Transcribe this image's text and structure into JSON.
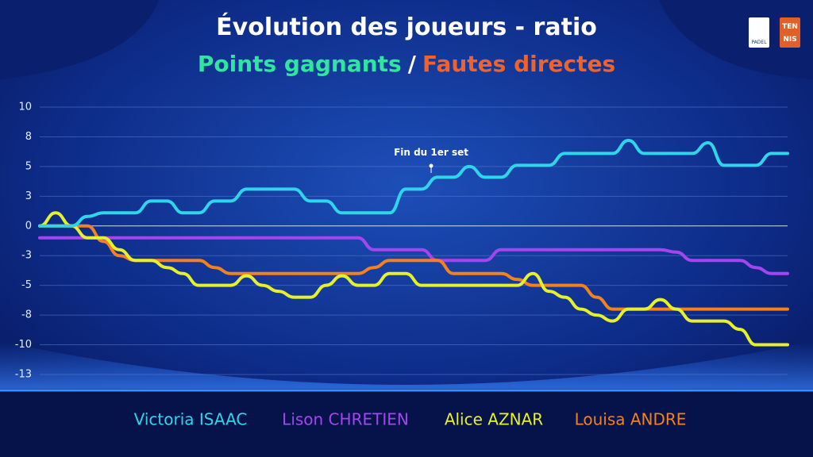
{
  "chart_data": {
    "type": "line",
    "title": "Évolution des joueurs - ratio",
    "subtitle": [
      {
        "text": "Points gagnants",
        "color": "#2fe5a0"
      },
      {
        "text": "/",
        "color": "#ffffff"
      },
      {
        "text": "Fautes directes",
        "color": "#f0622a"
      }
    ],
    "logos": [
      "PADEL",
      "TEN",
      "NIS"
    ],
    "annotation": "Fin du 1er set",
    "categories": [
      null,
      null,
      null,
      null,
      null,
      null,
      null,
      null,
      null,
      null,
      null,
      null,
      null,
      null,
      null,
      null,
      null,
      null,
      null,
      null,
      null,
      null,
      null,
      null,
      null,
      null,
      null,
      null,
      null,
      null,
      null,
      null,
      null,
      null,
      null,
      null,
      null,
      null,
      null,
      null,
      null,
      null,
      null,
      null,
      null,
      null,
      null,
      null
    ],
    "ylim": [
      -12.5,
      10
    ],
    "yticks": [
      {
        "value": 10,
        "label": "10"
      },
      {
        "value": 7.5,
        "label": "8"
      },
      {
        "value": 5,
        "label": "5"
      },
      {
        "value": 2.5,
        "label": "3"
      },
      {
        "value": 0,
        "label": "0"
      },
      {
        "value": -2.5,
        "label": "-3"
      },
      {
        "value": -5,
        "label": "-5"
      },
      {
        "value": -7.5,
        "label": "-8"
      },
      {
        "value": -10,
        "label": "-10"
      },
      {
        "value": -12.5,
        "label": "-13"
      }
    ],
    "grid": true,
    "series": [
      {
        "name": "Victoria ISAAC",
        "color": "#2fd6ea",
        "values": [
          0,
          0,
          0,
          0.8,
          1.1,
          1.1,
          1.1,
          2.1,
          2.1,
          1.1,
          1.1,
          2.1,
          2.1,
          3.1,
          3.1,
          3.1,
          3.1,
          2.1,
          2.1,
          1.1,
          1.1,
          1.1,
          1.1,
          3.1,
          3.1,
          4.1,
          4.1,
          5.0,
          4.1,
          4.1,
          5.1,
          5.1,
          5.1,
          6.1,
          6.1,
          6.1,
          6.1,
          7.2,
          6.1,
          6.1,
          6.1,
          6.1,
          7.0,
          5.1,
          5.1,
          5.1,
          6.1,
          6.1
        ]
      },
      {
        "name": "Lison CHRETIEN",
        "color": "#a545f0",
        "values": [
          -1,
          -1,
          -1,
          -1,
          -1,
          -1,
          -1,
          -1,
          -1,
          -1,
          -1,
          -1,
          -1,
          -1,
          -1,
          -1,
          -1,
          -1,
          -1,
          -1,
          -1,
          -2,
          -2,
          -2,
          -2,
          -2.9,
          -2.9,
          -2.9,
          -2.9,
          -2,
          -2,
          -2,
          -2,
          -2,
          -2,
          -2,
          -2,
          -2,
          -2,
          -2,
          -2.2,
          -2.9,
          -2.9,
          -2.9,
          -2.9,
          -3.5,
          -4,
          -4
        ]
      },
      {
        "name": "Alice AZNAR",
        "color": "#e6f02c",
        "values": [
          0,
          1.1,
          0,
          -1,
          -1,
          -2,
          -2.9,
          -2.9,
          -3.5,
          -4,
          -5,
          -5,
          -5,
          -4.2,
          -5,
          -5.5,
          -6,
          -6,
          -5,
          -4.2,
          -5,
          -5,
          -4,
          -4,
          -5,
          -5,
          -5,
          -5,
          -5,
          -5,
          -5,
          -4,
          -5.5,
          -6,
          -7,
          -7.5,
          -8,
          -7,
          -7,
          -6.2,
          -7,
          -8,
          -8,
          -8,
          -8.7,
          -10,
          -10,
          -10
        ]
      },
      {
        "name": "Louisa ANDRE",
        "color": "#f4811f",
        "values": [
          0,
          0,
          0,
          0,
          -1.3,
          -2.5,
          -2.9,
          -2.9,
          -2.9,
          -2.9,
          -2.9,
          -3.5,
          -4,
          -4,
          -4,
          -4,
          -4,
          -4,
          -4,
          -4,
          -4,
          -3.5,
          -2.9,
          -2.9,
          -2.9,
          -2.9,
          -4,
          -4,
          -4,
          -4,
          -4.5,
          -5,
          -5,
          -5,
          -5,
          -6,
          -7,
          -7,
          -7,
          -7,
          -7,
          -7,
          -7,
          -7,
          -7,
          -7,
          -7,
          -7
        ]
      }
    ]
  }
}
